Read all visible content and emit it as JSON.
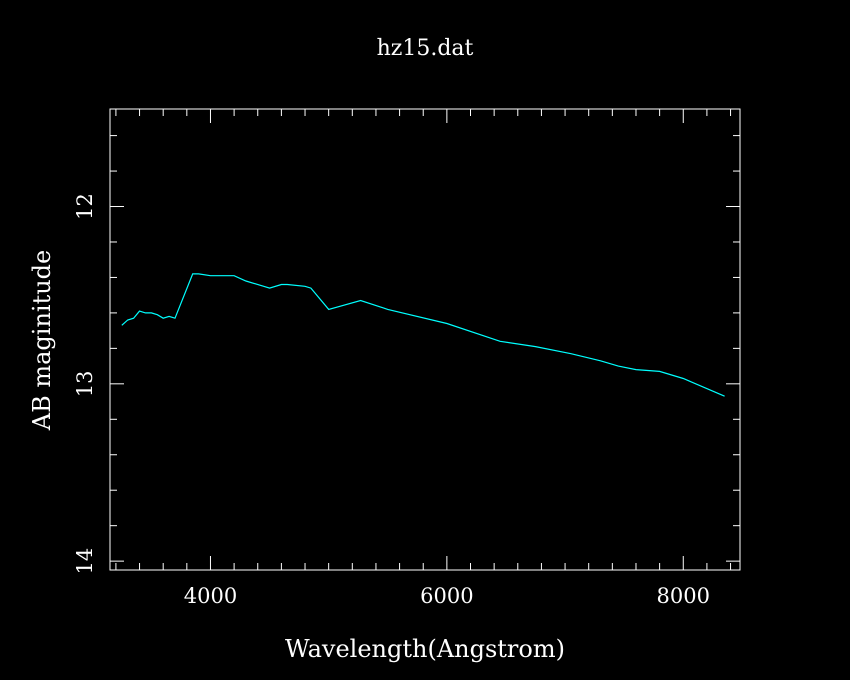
{
  "chart_data": {
    "type": "line",
    "title": "hz15.dat",
    "xlabel": "Wavelength(Angstrom)",
    "ylabel": "AB maginitude",
    "xlim": [
      3150,
      8480
    ],
    "ylim": [
      14.05,
      11.45
    ],
    "y_inverted": true,
    "x_ticks": [
      4000,
      6000,
      8000
    ],
    "x_tick_labels": [
      "4000",
      "6000",
      "8000"
    ],
    "y_ticks": [
      12,
      13,
      14
    ],
    "y_tick_labels": [
      "12",
      "13",
      "14"
    ],
    "grid": false,
    "series": [
      {
        "name": "",
        "color": "#00ffff",
        "x": [
          3250,
          3300,
          3350,
          3400,
          3450,
          3500,
          3550,
          3600,
          3650,
          3700,
          3850,
          3900,
          4000,
          4100,
          4200,
          4300,
          4450,
          4500,
          4600,
          4650,
          4800,
          4850,
          5000,
          5270,
          5500,
          6000,
          6450,
          6750,
          7050,
          7300,
          7450,
          7600,
          7800,
          8000,
          8350
        ],
        "y": [
          12.67,
          12.64,
          12.63,
          12.59,
          12.6,
          12.6,
          12.61,
          12.63,
          12.62,
          12.63,
          12.38,
          12.38,
          12.39,
          12.39,
          12.39,
          12.42,
          12.45,
          12.46,
          12.44,
          12.44,
          12.45,
          12.46,
          12.58,
          12.53,
          12.58,
          12.66,
          12.76,
          12.79,
          12.83,
          12.87,
          12.9,
          12.92,
          12.93,
          12.97,
          13.07
        ]
      }
    ],
    "colors": {
      "background": "#000000",
      "axes": "#ffffff",
      "line": "#00ffff"
    }
  }
}
